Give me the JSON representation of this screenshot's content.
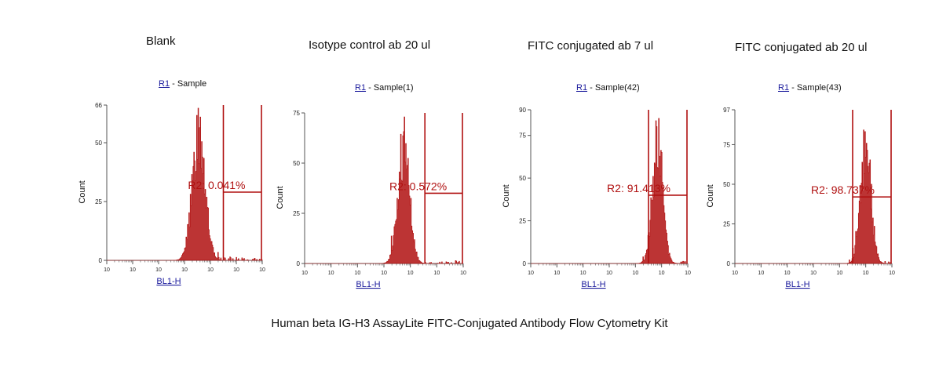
{
  "caption": "Human beta IG-H3 AssayLite FITC-Conjugated Antibody Flow Cytometry Kit",
  "colors": {
    "histogram": "#b01010",
    "gate": "#b01010",
    "axis": "#555555",
    "link": "#1a1a9c"
  },
  "panels": [
    {
      "title": "Blank",
      "gate_name": "R1",
      "sample": " - Sample",
      "ylabel": "Count",
      "xlabel": "BL1-H",
      "region_label": "R2: 0.041%"
    },
    {
      "title": "Isotype control ab 20 ul",
      "gate_name": "R1",
      "sample": " - Sample(1)",
      "ylabel": "Count",
      "xlabel": "BL1-H",
      "region_label": "R2: 0.572%"
    },
    {
      "title": "FITC conjugated ab 7 ul",
      "gate_name": "R1",
      "sample": " - Sample(42)",
      "ylabel": "Count",
      "xlabel": "BL1-H",
      "region_label": "R2: 91.413%"
    },
    {
      "title": "FITC conjugated ab 20 ul",
      "gate_name": "R1",
      "sample": " - Sample(43)",
      "ylabel": "Count",
      "xlabel": "BL1-H",
      "region_label": "R2: 98.737%"
    }
  ],
  "chart_data": [
    {
      "type": "area",
      "title": "Blank",
      "xlabel": "BL1-H",
      "ylabel": "Count",
      "x_scale": "log",
      "xlim_decades": [
        0,
        6
      ],
      "x_tick_labels": [
        "10",
        "10",
        "10",
        "10",
        "10",
        "10",
        "10"
      ],
      "ylim": [
        0,
        66
      ],
      "y_ticks": [
        0,
        25,
        50,
        66
      ],
      "peak_log10": 3.55,
      "peak_count": 66,
      "peak_width": 0.25,
      "region": {
        "name": "R2",
        "percent": 0.041,
        "x_from_log10": 4.5,
        "x_to_log10": 6.0,
        "count_level": 29
      }
    },
    {
      "type": "area",
      "title": "Isotype control ab 20 ul",
      "xlabel": "BL1-H",
      "ylabel": "Count",
      "x_scale": "log",
      "xlim_decades": [
        0,
        6
      ],
      "x_tick_labels": [
        "10",
        "10",
        "10",
        "10",
        "10",
        "10",
        "10"
      ],
      "ylim": [
        0,
        75
      ],
      "y_ticks": [
        0,
        25,
        50,
        75
      ],
      "peak_log10": 3.75,
      "peak_count": 75,
      "peak_width": 0.22,
      "region": {
        "name": "R2",
        "percent": 0.572,
        "x_from_log10": 4.55,
        "x_to_log10": 6.0,
        "count_level": 35
      }
    },
    {
      "type": "area",
      "title": "FITC conjugated ab 7 ul",
      "xlabel": "BL1-H",
      "ylabel": "Count",
      "x_scale": "log",
      "xlim_decades": [
        0,
        6
      ],
      "x_tick_labels": [
        "10",
        "10",
        "10",
        "10",
        "10",
        "10",
        "10"
      ],
      "ylim": [
        0,
        90
      ],
      "y_ticks": [
        0,
        25,
        50,
        75,
        90
      ],
      "peak_log10": 4.85,
      "peak_count": 88,
      "peak_width": 0.2,
      "region": {
        "name": "R2",
        "percent": 91.413,
        "x_from_log10": 4.5,
        "x_to_log10": 6.0,
        "count_level": 40
      }
    },
    {
      "type": "area",
      "title": "FITC conjugated ab 20 ul",
      "xlabel": "BL1-H",
      "ylabel": "Count",
      "x_scale": "log",
      "xlim_decades": [
        0,
        6
      ],
      "x_tick_labels": [
        "10",
        "10",
        "10",
        "10",
        "10",
        "10",
        "10"
      ],
      "ylim": [
        0,
        97
      ],
      "y_ticks": [
        0,
        25,
        50,
        75,
        97
      ],
      "peak_log10": 5.0,
      "peak_count": 95,
      "peak_width": 0.2,
      "region": {
        "name": "R2",
        "percent": 98.737,
        "x_from_log10": 4.5,
        "x_to_log10": 6.0,
        "count_level": 42
      }
    }
  ]
}
